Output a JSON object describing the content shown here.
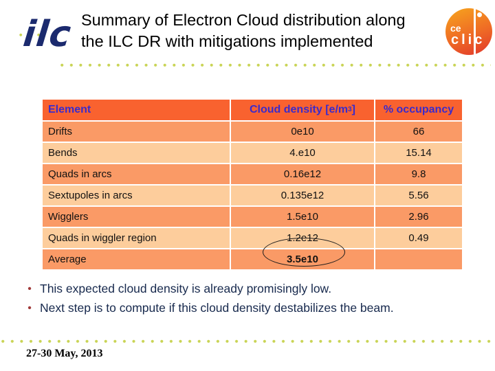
{
  "slide": {
    "title_line1": "Summary of Electron Cloud distribution along",
    "title_line2": "the ILC DR with mitigations implemented",
    "footer_date": "27-30 May, 2013"
  },
  "logos": {
    "ilc_text": "ilc",
    "clic_ce": "ce",
    "clic_word": "clic"
  },
  "table": {
    "headers": {
      "element": "Element",
      "density_prefix": "Cloud density [e/m",
      "density_sup": "3",
      "density_suffix": "]",
      "occupancy": "% occupancy"
    },
    "rows": [
      {
        "element": "Drifts",
        "density": "0e10",
        "occupancy": "66"
      },
      {
        "element": "Bends",
        "density": "4.e10",
        "occupancy": "15.14"
      },
      {
        "element": "Quads in arcs",
        "density": "0.16e12",
        "occupancy": "9.8"
      },
      {
        "element": "Sextupoles in arcs",
        "density": "0.135e12",
        "occupancy": "5.56"
      },
      {
        "element": "Wigglers",
        "density": "1.5e10",
        "occupancy": "2.96"
      },
      {
        "element": "Quads in wiggler region",
        "density": "1.2e12",
        "occupancy": "0.49"
      },
      {
        "element": "Average",
        "density": "3.5e10",
        "occupancy": ""
      }
    ],
    "highlight": "3.5e10 circled"
  },
  "bullets": [
    {
      "marker": "•",
      "text": "This expected cloud density is already promisingly low."
    },
    {
      "marker": "•",
      "text": "Next step is to compute if this cloud density destabilizes the beam."
    }
  ],
  "colors": {
    "header_bg": "#F9622F",
    "row_odd_bg": "#FA9A66",
    "row_even_bg": "#FDCD9C",
    "header_text": "#3B2BCB",
    "bullet_text": "#17294D",
    "bullet_marker": "#A03939",
    "dot_color": "#C9D455",
    "ilc_navy": "#1B2A6E"
  }
}
